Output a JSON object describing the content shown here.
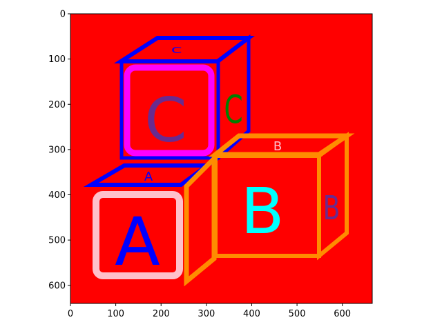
{
  "axes": {
    "x_ticks": [
      "0",
      "100",
      "200",
      "300",
      "400",
      "500",
      "600"
    ],
    "y_ticks": [
      "0",
      "100",
      "200",
      "300",
      "400",
      "500",
      "600"
    ],
    "x_range": [
      0,
      666
    ],
    "y_range": [
      0,
      640
    ]
  },
  "image": {
    "background_color": "#ff0000",
    "blocks": {
      "c_block": {
        "front_letter": "C",
        "side_letter": "C",
        "top_letter": "C",
        "front_letter_color": "#6a2b8f",
        "frame_color": "#ff00ff",
        "edge_color": "#0000ff",
        "side_letter_color": "#008000"
      },
      "a_block": {
        "front_letter": "A",
        "top_letter": "A",
        "front_letter_color": "#0000ff",
        "frame_color": "#ffc0cb",
        "edge_color": "#0000ff"
      },
      "b_block": {
        "front_letter": "B",
        "side_letter": "B",
        "top_letter": "B",
        "front_letter_color": "#00ffff",
        "frame_color": "#ff8c00",
        "side_letter_color": "#6a2b8f",
        "top_letter_color": "#ffc0cb"
      }
    }
  }
}
